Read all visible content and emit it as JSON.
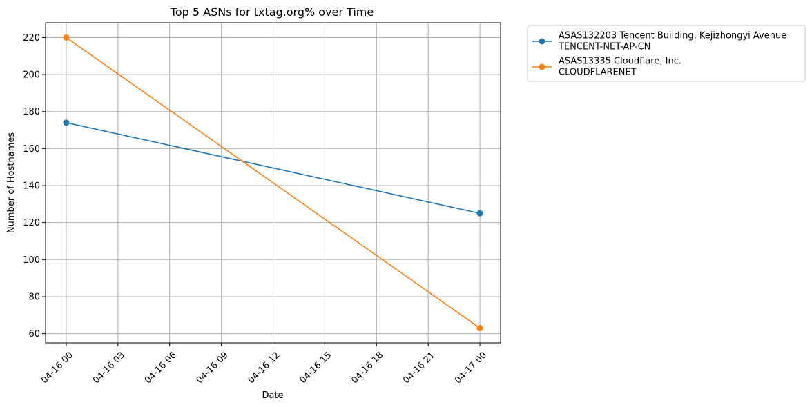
{
  "chart_data": {
    "type": "line",
    "title": "Top 5 ASNs for txtag.org% over Time",
    "xlabel": "Date",
    "ylabel": "Number of Hostnames",
    "x_tick_labels": [
      "04-16 00",
      "04-16 03",
      "04-16 06",
      "04-16 09",
      "04-16 12",
      "04-16 15",
      "04-16 18",
      "04-16 21",
      "04-17 00"
    ],
    "x_tick_hours": [
      0,
      3,
      6,
      9,
      12,
      15,
      18,
      21,
      24
    ],
    "x_range_hours": [
      -1.2,
      25.2
    ],
    "x": [
      "04-16 00",
      "04-17 00"
    ],
    "x_hours": [
      0,
      24
    ],
    "y_ticks": [
      60,
      80,
      100,
      120,
      140,
      160,
      180,
      200,
      220
    ],
    "ylim": [
      55,
      228
    ],
    "grid": true,
    "legend_position": "outside-right",
    "series": [
      {
        "name_lines": [
          "ASAS132203 Tencent Building, Kejizhongyi Avenue",
          "TENCENT-NET-AP-CN"
        ],
        "color": "#1f77b4",
        "values": [
          174,
          125
        ]
      },
      {
        "name_lines": [
          "ASAS13335 Cloudflare, Inc.",
          "CLOUDFLARENET"
        ],
        "color": "#ff7f0e",
        "values": [
          220,
          63
        ]
      }
    ]
  }
}
